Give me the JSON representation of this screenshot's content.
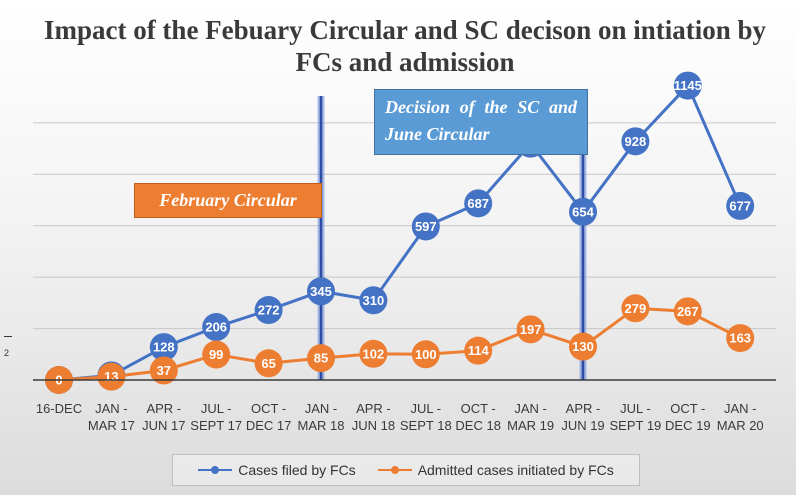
{
  "chart_data": {
    "type": "line",
    "title": "Impact of the Febuary Circular and SC decison on intiation by FCs and admission",
    "categories": [
      [
        "16-DEC",
        ""
      ],
      [
        "JAN -",
        "MAR 17"
      ],
      [
        "APR -",
        "JUN 17"
      ],
      [
        "JUL -",
        "SEPT 17"
      ],
      [
        "OCT -",
        "DEC 17"
      ],
      [
        "JAN -",
        "MAR 18"
      ],
      [
        "APR -",
        "JUN 18"
      ],
      [
        "JUL -",
        "SEPT 18"
      ],
      [
        "OCT -",
        "DEC 18"
      ],
      [
        "JAN -",
        "MAR 19"
      ],
      [
        "APR -",
        "JUN 19"
      ],
      [
        "JUL -",
        "SEPT 19"
      ],
      [
        "OCT -",
        "DEC 19"
      ],
      [
        "JAN -",
        "MAR 20"
      ]
    ],
    "series": [
      {
        "name": "Cases filed by FCs",
        "color": "#4472c4",
        "values": [
          0,
          18,
          128,
          206,
          272,
          345,
          310,
          597,
          687,
          919,
          654,
          928,
          1145,
          677
        ]
      },
      {
        "name": "Admitted cases initiated by FCs",
        "color": "#ed7d31",
        "values": [
          0,
          13,
          37,
          99,
          65,
          85,
          102,
          100,
          114,
          197,
          130,
          279,
          267,
          163
        ]
      }
    ],
    "ylim": [
      0,
      1400
    ],
    "grid": true,
    "legend_position": "bottom",
    "annotations": [
      {
        "text": "February Circular",
        "category_index": 5
      },
      {
        "text": "Decision of the SC and June Circular",
        "category_index": 10
      }
    ],
    "side_label": "2"
  }
}
